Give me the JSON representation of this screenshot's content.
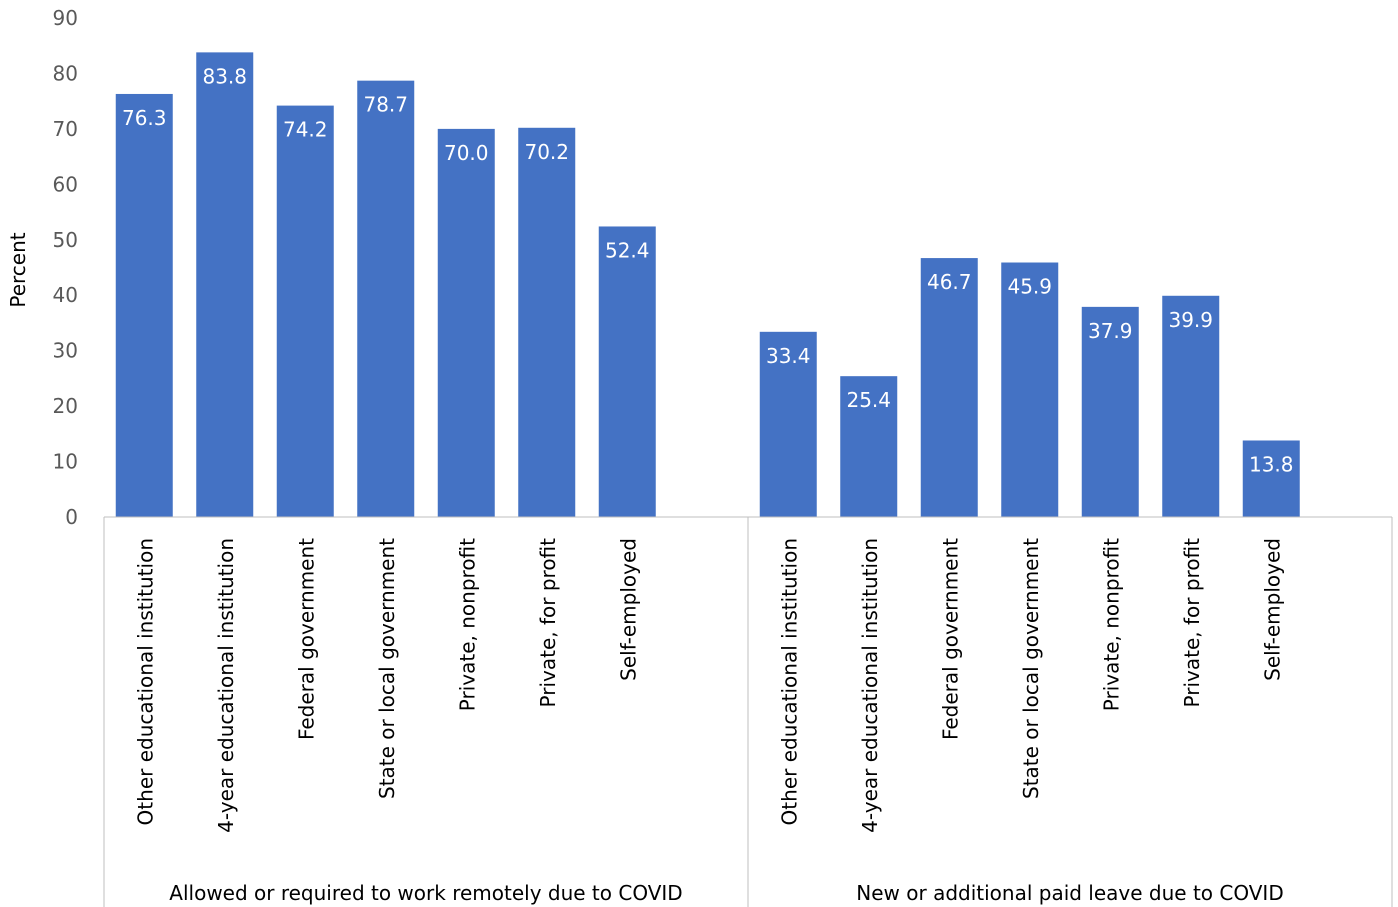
{
  "chart_data": {
    "type": "bar",
    "ylabel": "Percent",
    "xlabel": "",
    "ylim": [
      0,
      90
    ],
    "yticks": [
      0,
      10,
      20,
      30,
      40,
      50,
      60,
      70,
      80,
      90
    ],
    "grid": false,
    "bar_color": "#4472c4",
    "groups": [
      {
        "label": "Allowed or required to work remotely due to COVID",
        "categories": [
          "Other educational institution",
          "4-year educational institution",
          "Federal government",
          "State or local government",
          "Private, nonprofit",
          "Private, for profit",
          "Self-employed"
        ],
        "values": [
          76.3,
          83.8,
          74.2,
          78.7,
          70.0,
          70.2,
          52.4
        ]
      },
      {
        "label": "New or additional paid leave due to COVID",
        "categories": [
          "Other educational institution",
          "4-year educational institution",
          "Federal government",
          "State or local government",
          "Private, nonprofit",
          "Private, for profit",
          "Self-employed"
        ],
        "values": [
          33.4,
          25.4,
          46.7,
          45.9,
          37.9,
          39.9,
          13.8
        ]
      }
    ]
  }
}
